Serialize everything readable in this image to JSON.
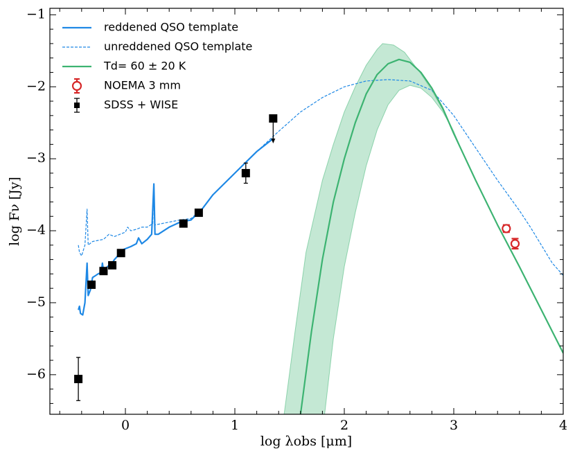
{
  "chart_data": {
    "type": "line",
    "xlabel": "log λobs [μm]",
    "ylabel": "log Fν [Jy]",
    "xlim": [
      -0.69,
      4.0
    ],
    "ylim": [
      -6.55,
      -0.91
    ],
    "xticks": [
      0,
      1,
      2,
      3,
      4
    ],
    "yticks": [
      {
        "value": -6,
        "label": "−6"
      },
      {
        "value": -5,
        "label": "−5"
      },
      {
        "value": -4,
        "label": "−4"
      },
      {
        "value": -3,
        "label": "−3"
      },
      {
        "value": -2,
        "label": "−2"
      },
      {
        "value": -1,
        "label": "−1"
      }
    ],
    "xminorticks": [
      -0.6,
      -0.4,
      -0.2,
      0.2,
      0.4,
      0.6,
      0.8,
      1.2,
      1.4,
      1.6,
      1.8,
      2.2,
      2.4,
      2.6,
      2.8,
      3.2,
      3.4,
      3.6,
      3.8
    ],
    "yminorticks": [
      -6.4,
      -6.2,
      -5.8,
      -5.6,
      -5.4,
      -5.2,
      -4.8,
      -4.6,
      -4.4,
      -4.2,
      -3.8,
      -3.6,
      -3.4,
      -3.2,
      -2.8,
      -2.6,
      -2.4,
      -2.2,
      -1.8,
      -1.6,
      -1.4,
      -1.2
    ],
    "legend": "upper left",
    "series": [
      {
        "name": "reddened QSO template",
        "color": "#1e88e5",
        "style": "solid",
        "x": [
          -0.43,
          -0.42,
          -0.41,
          -0.39,
          -0.37,
          -0.35,
          -0.34,
          -0.32,
          -0.3,
          -0.27,
          -0.25,
          -0.22,
          -0.21,
          -0.2,
          -0.15,
          -0.12,
          -0.1,
          -0.07,
          -0.05,
          0.0,
          0.05,
          0.1,
          0.12,
          0.15,
          0.2,
          0.24,
          0.26,
          0.27,
          0.3,
          0.4,
          0.5,
          0.6,
          0.7,
          0.8,
          0.9,
          1.0,
          1.1,
          1.2,
          1.3,
          1.35
        ],
        "values": [
          -5.1,
          -5.05,
          -5.15,
          -5.17,
          -5.0,
          -4.45,
          -4.9,
          -4.82,
          -4.65,
          -4.62,
          -4.6,
          -4.58,
          -4.45,
          -4.55,
          -4.48,
          -4.45,
          -4.4,
          -4.35,
          -4.28,
          -4.25,
          -4.22,
          -4.18,
          -4.1,
          -4.18,
          -4.12,
          -4.05,
          -3.35,
          -4.05,
          -4.05,
          -3.95,
          -3.88,
          -3.85,
          -3.7,
          -3.5,
          -3.35,
          -3.2,
          -3.05,
          -2.9,
          -2.78,
          -2.72
        ]
      },
      {
        "name": "unreddened QSO template",
        "color": "#1e88e5",
        "style": "dashed",
        "x": [
          -0.43,
          -0.42,
          -0.4,
          -0.37,
          -0.35,
          -0.34,
          -0.3,
          -0.2,
          -0.15,
          -0.1,
          -0.05,
          0.0,
          0.02,
          0.05,
          0.1,
          0.15,
          0.2,
          0.25,
          0.26,
          0.27,
          0.4,
          0.5,
          0.6,
          0.7,
          0.8,
          1.0,
          1.2,
          1.4,
          1.6,
          1.8,
          2.0,
          2.2,
          2.4,
          2.6,
          2.8,
          3.0,
          3.2,
          3.4,
          3.6,
          3.7,
          3.8,
          3.9,
          4.0
        ],
        "values": [
          -4.2,
          -4.3,
          -4.35,
          -4.2,
          -3.7,
          -4.2,
          -4.15,
          -4.12,
          -4.05,
          -4.08,
          -4.05,
          -4.02,
          -3.95,
          -4.0,
          -3.98,
          -3.95,
          -3.95,
          -3.9,
          -3.35,
          -3.92,
          -3.88,
          -3.85,
          -3.83,
          -3.7,
          -3.5,
          -3.2,
          -2.9,
          -2.62,
          -2.35,
          -2.15,
          -2.0,
          -1.92,
          -1.9,
          -1.92,
          -2.05,
          -2.4,
          -2.85,
          -3.3,
          -3.72,
          -3.95,
          -4.2,
          -4.45,
          -4.62
        ]
      },
      {
        "name": "Td= 60 ± 20 K",
        "color": "#3cb371",
        "style": "solid",
        "x": [
          1.6,
          1.7,
          1.8,
          1.9,
          2.0,
          2.1,
          2.2,
          2.3,
          2.4,
          2.5,
          2.6,
          2.7,
          2.8,
          2.9,
          3.0,
          3.2,
          3.4,
          3.6,
          3.8,
          4.0
        ],
        "values": [
          -6.55,
          -5.4,
          -4.4,
          -3.6,
          -3.0,
          -2.5,
          -2.1,
          -1.83,
          -1.68,
          -1.62,
          -1.66,
          -1.8,
          -2.02,
          -2.3,
          -2.65,
          -3.3,
          -3.92,
          -4.5,
          -5.1,
          -5.7
        ],
        "band": {
          "x_upper": [
            1.45,
            1.55,
            1.65,
            1.8,
            1.9,
            2.0,
            2.1,
            2.2,
            2.3,
            2.35,
            2.45,
            2.55,
            2.7,
            2.8,
            2.9,
            3.0,
            3.05
          ],
          "upper": [
            -6.55,
            -5.4,
            -4.3,
            -3.3,
            -2.8,
            -2.35,
            -2.0,
            -1.7,
            -1.48,
            -1.4,
            -1.42,
            -1.52,
            -1.82,
            -2.05,
            -2.32,
            -2.62,
            -2.8
          ],
          "x_lower": [
            1.82,
            1.9,
            2.0,
            2.1,
            2.2,
            2.3,
            2.4,
            2.5,
            2.6,
            2.7,
            2.8,
            2.9,
            3.0,
            3.05
          ],
          "lower": [
            -6.55,
            -5.5,
            -4.5,
            -3.75,
            -3.1,
            -2.6,
            -2.25,
            -2.05,
            -1.98,
            -2.02,
            -2.15,
            -2.35,
            -2.62,
            -2.8
          ]
        }
      }
    ],
    "points": [
      {
        "name": "NOEMA 3 mm",
        "color": "#d62728",
        "marker": "circle-open",
        "x": [
          3.48,
          3.56
        ],
        "values": [
          -3.97,
          -4.18
        ],
        "errors": [
          0.05,
          0.07
        ],
        "upper_limit": [
          false,
          false
        ]
      },
      {
        "name": "SDSS + WISE",
        "color": "#000000",
        "marker": "square",
        "x": [
          -0.43,
          -0.31,
          -0.2,
          -0.12,
          -0.04,
          0.53,
          0.67,
          1.1,
          1.35
        ],
        "values": [
          -6.06,
          -4.75,
          -4.56,
          -4.48,
          -4.31,
          -3.9,
          -3.75,
          -3.2,
          -2.44
        ],
        "errors": [
          0.3,
          null,
          null,
          null,
          null,
          null,
          null,
          0.14,
          null
        ],
        "upper_limit": [
          false,
          false,
          false,
          false,
          false,
          false,
          false,
          false,
          true
        ]
      }
    ]
  }
}
